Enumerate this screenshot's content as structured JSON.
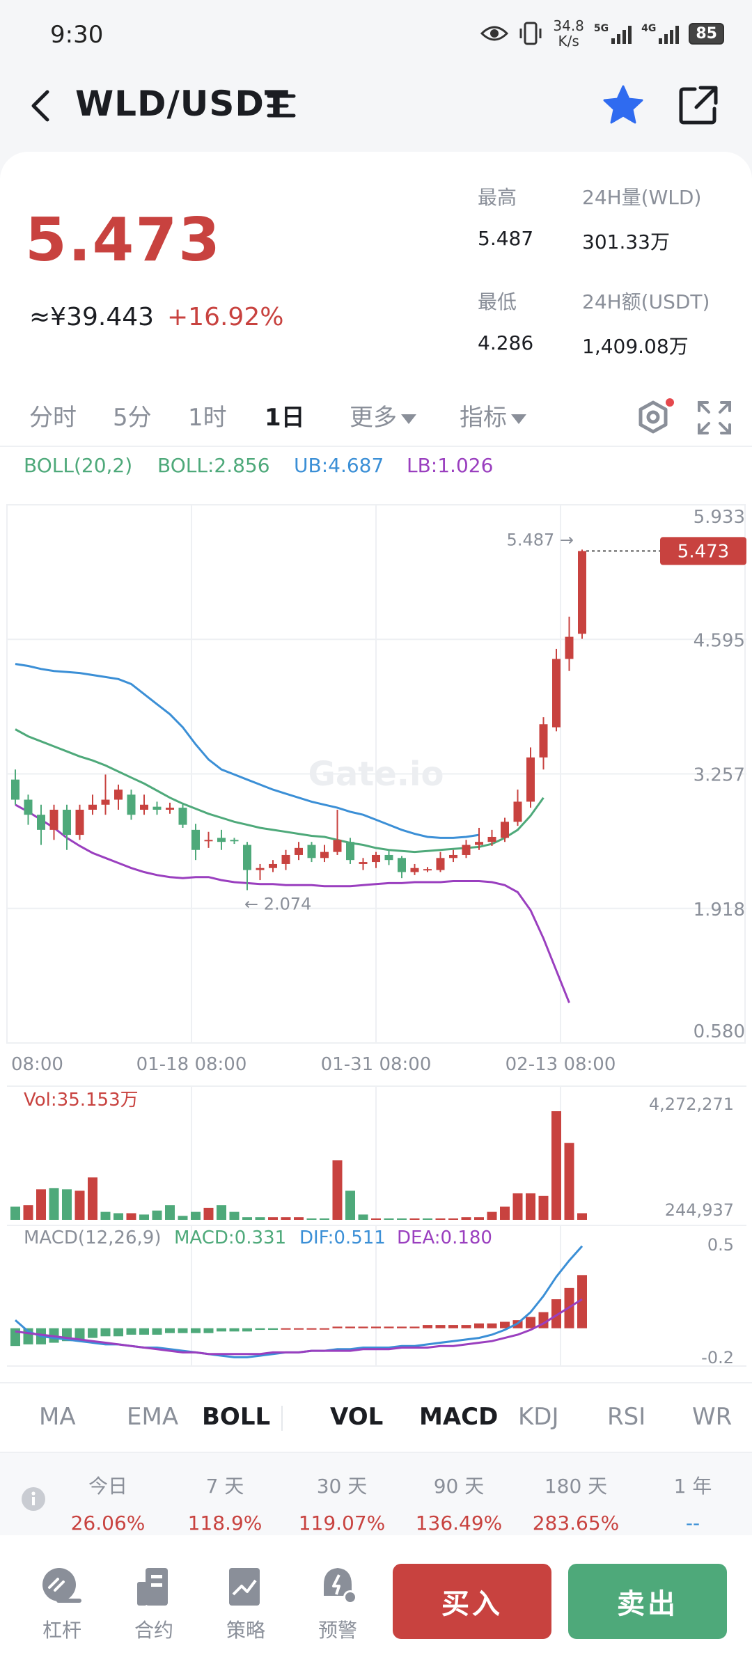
{
  "status_bar": {
    "time": "9:30",
    "net_speed_top": "34.8",
    "net_speed_bottom": "K/s",
    "signal_1": "5G",
    "signal_2": "4G",
    "battery": "85"
  },
  "header": {
    "pair": "WLD/USDT",
    "favorite": true
  },
  "ticker": {
    "last_price": "5.473",
    "cny_price": "≈¥39.443",
    "change_pct": "+16.92%",
    "high_label": "最高",
    "high_value": "5.487",
    "low_label": "最低",
    "low_value": "4.286",
    "vol_label": "24H量(WLD)",
    "vol_value": "301.33万",
    "amount_label": "24H额(USDT)",
    "amount_value": "1,409.08万"
  },
  "timeframes": {
    "items": [
      "分时",
      "5分",
      "1时",
      "1日"
    ],
    "active": "1日",
    "more": "更多",
    "indicators": "指标"
  },
  "boll_legend": {
    "name": "BOLL(20,2)",
    "boll": "BOLL:2.856",
    "ub": "UB:4.687",
    "lb": "LB:1.026"
  },
  "colors": {
    "up": "#c8423f",
    "down": "#4ea97a",
    "boll_mid": "#4ea97a",
    "boll_ub": "#3b8fd6",
    "boll_lb": "#9a3fbf",
    "buy": "#c8423f",
    "sell": "#4ea97a"
  },
  "chart_data": [
    {
      "type": "candlestick",
      "y_ticks": [
        "5.933",
        "4.595",
        "3.257",
        "1.918",
        "0.580"
      ],
      "ylim": [
        0.58,
        5.933
      ],
      "x_ticks": [
        "08:00",
        "01-18 08:00",
        "01-31 08:00",
        "02-13 08:00"
      ],
      "current_price_tag": "5.473",
      "max_marker": "5.487",
      "min_marker": "2.074",
      "watermark": "Gate.io",
      "candles": [
        [
          3.2,
          3.0,
          3.3,
          2.95
        ],
        [
          3.0,
          2.85,
          3.05,
          2.75
        ],
        [
          2.85,
          2.7,
          2.95,
          2.55
        ],
        [
          2.7,
          2.9,
          2.95,
          2.6
        ],
        [
          2.9,
          2.65,
          2.95,
          2.5
        ],
        [
          2.65,
          2.9,
          2.95,
          2.6
        ],
        [
          2.9,
          2.95,
          3.05,
          2.85
        ],
        [
          2.95,
          3.0,
          3.25,
          2.85
        ],
        [
          3.0,
          3.1,
          3.15,
          2.9
        ],
        [
          3.05,
          2.85,
          3.1,
          2.8
        ],
        [
          2.9,
          2.95,
          3.05,
          2.85
        ],
        [
          2.93,
          2.9,
          2.98,
          2.85
        ],
        [
          2.9,
          2.92,
          2.97,
          2.86
        ],
        [
          2.92,
          2.75,
          2.97,
          2.72
        ],
        [
          2.7,
          2.5,
          2.76,
          2.4
        ],
        [
          2.6,
          2.6,
          2.68,
          2.52
        ],
        [
          2.62,
          2.58,
          2.7,
          2.5
        ],
        [
          2.6,
          2.59,
          2.62,
          2.56
        ],
        [
          2.55,
          2.3,
          2.58,
          2.1
        ],
        [
          2.3,
          2.32,
          2.36,
          2.2
        ],
        [
          2.32,
          2.36,
          2.4,
          2.28
        ],
        [
          2.36,
          2.45,
          2.5,
          2.3
        ],
        [
          2.45,
          2.52,
          2.58,
          2.4
        ],
        [
          2.55,
          2.42,
          2.58,
          2.38
        ],
        [
          2.42,
          2.48,
          2.55,
          2.38
        ],
        [
          2.48,
          2.6,
          2.9,
          2.45
        ],
        [
          2.58,
          2.4,
          2.62,
          2.36
        ],
        [
          2.36,
          2.38,
          2.42,
          2.3
        ],
        [
          2.38,
          2.45,
          2.48,
          2.32
        ],
        [
          2.45,
          2.4,
          2.5,
          2.35
        ],
        [
          2.42,
          2.28,
          2.44,
          2.22
        ],
        [
          2.28,
          2.32,
          2.36,
          2.25
        ],
        [
          2.3,
          2.31,
          2.33,
          2.28
        ],
        [
          2.3,
          2.42,
          2.48,
          2.28
        ],
        [
          2.42,
          2.45,
          2.5,
          2.38
        ],
        [
          2.45,
          2.55,
          2.6,
          2.42
        ],
        [
          2.55,
          2.58,
          2.72,
          2.5
        ],
        [
          2.58,
          2.63,
          2.7,
          2.54
        ],
        [
          2.62,
          2.78,
          2.82,
          2.58
        ],
        [
          2.78,
          2.98,
          3.1,
          2.74
        ],
        [
          2.98,
          3.42,
          3.52,
          2.92
        ],
        [
          3.42,
          3.75,
          3.82,
          3.3
        ],
        [
          3.72,
          4.4,
          4.5,
          3.68
        ],
        [
          4.4,
          4.62,
          4.82,
          4.28
        ],
        [
          4.65,
          5.473,
          5.487,
          4.6
        ]
      ],
      "boll_upper": [
        4.35,
        4.33,
        4.3,
        4.28,
        4.27,
        4.26,
        4.24,
        4.22,
        4.2,
        4.15,
        4.05,
        3.95,
        3.85,
        3.72,
        3.55,
        3.4,
        3.3,
        3.25,
        3.2,
        3.15,
        3.1,
        3.06,
        3.02,
        2.98,
        2.95,
        2.92,
        2.88,
        2.85,
        2.8,
        2.75,
        2.7,
        2.66,
        2.63,
        2.62,
        2.62,
        2.63,
        2.65
      ],
      "boll_mid": [
        3.7,
        3.63,
        3.58,
        3.53,
        3.48,
        3.43,
        3.39,
        3.34,
        3.28,
        3.22,
        3.16,
        3.09,
        3.02,
        2.96,
        2.91,
        2.86,
        2.82,
        2.78,
        2.75,
        2.72,
        2.7,
        2.68,
        2.66,
        2.64,
        2.63,
        2.6,
        2.57,
        2.55,
        2.52,
        2.5,
        2.49,
        2.48,
        2.49,
        2.5,
        2.51,
        2.52,
        2.53,
        2.56,
        2.62,
        2.7,
        2.84,
        3.02
      ],
      "boll_lower": [
        2.95,
        2.88,
        2.8,
        2.72,
        2.62,
        2.54,
        2.47,
        2.42,
        2.37,
        2.32,
        2.28,
        2.25,
        2.23,
        2.22,
        2.23,
        2.23,
        2.2,
        2.18,
        2.17,
        2.16,
        2.16,
        2.15,
        2.15,
        2.15,
        2.14,
        2.14,
        2.14,
        2.15,
        2.16,
        2.17,
        2.17,
        2.18,
        2.18,
        2.18,
        2.19,
        2.19,
        2.19,
        2.18,
        2.15,
        2.08,
        1.9,
        1.62,
        1.3,
        0.98
      ]
    },
    {
      "type": "bar",
      "legend": "Vol:35.153万",
      "y_ticks": [
        "4,272,271",
        "244,937"
      ],
      "values": [
        0.1,
        0.11,
        0.23,
        0.24,
        0.23,
        0.22,
        0.32,
        0.06,
        0.05,
        0.05,
        0.04,
        0.07,
        0.11,
        0.03,
        0.06,
        0.09,
        0.11,
        0.06,
        0.02,
        0.02,
        0.02,
        0.02,
        0.02,
        0.01,
        0.01,
        0.45,
        0.22,
        0.04,
        0.01,
        0.01,
        0.01,
        0.0,
        0.0,
        0.01,
        0.01,
        0.02,
        0.02,
        0.06,
        0.1,
        0.2,
        0.2,
        0.18,
        0.82,
        0.58,
        0.05
      ],
      "up": [
        false,
        true,
        true,
        false,
        false,
        true,
        true,
        false,
        false,
        true,
        false,
        false,
        false,
        false,
        false,
        true,
        false,
        false,
        false,
        false,
        true,
        true,
        true,
        false,
        false,
        true,
        false,
        false,
        true,
        false,
        false,
        true,
        false,
        true,
        true,
        true,
        true,
        true,
        true,
        true,
        true,
        true,
        true,
        true,
        true
      ]
    },
    {
      "type": "bar+line",
      "legend_name": "MACD(12,26,9)",
      "legend_macd": "MACD:0.331",
      "legend_dif": "DIF:0.511",
      "legend_dea": "DEA:0.180",
      "y_ticks": [
        "0.5",
        "-0.2"
      ],
      "ylim": [
        -0.2,
        0.5
      ],
      "histogram": [
        -0.11,
        -0.1,
        -0.1,
        -0.09,
        -0.08,
        -0.07,
        -0.06,
        -0.05,
        -0.05,
        -0.04,
        -0.04,
        -0.04,
        -0.03,
        -0.03,
        -0.03,
        -0.03,
        -0.02,
        -0.02,
        -0.02,
        -0.01,
        -0.01,
        0.0,
        0.0,
        0.0,
        0.0,
        0.01,
        0.01,
        0.01,
        0.01,
        0.01,
        0.01,
        0.01,
        0.02,
        0.02,
        0.02,
        0.02,
        0.03,
        0.03,
        0.04,
        0.05,
        0.07,
        0.1,
        0.18,
        0.25,
        0.33
      ],
      "dif": [
        0.05,
        -0.02,
        -0.05,
        -0.06,
        -0.07,
        -0.08,
        -0.09,
        -0.1,
        -0.1,
        -0.11,
        -0.12,
        -0.12,
        -0.13,
        -0.14,
        -0.15,
        -0.16,
        -0.17,
        -0.18,
        -0.18,
        -0.17,
        -0.16,
        -0.15,
        -0.15,
        -0.14,
        -0.14,
        -0.13,
        -0.13,
        -0.12,
        -0.12,
        -0.12,
        -0.11,
        -0.11,
        -0.1,
        -0.09,
        -0.08,
        -0.07,
        -0.06,
        -0.04,
        -0.01,
        0.03,
        0.1,
        0.2,
        0.32,
        0.42,
        0.51
      ],
      "dea": [
        -0.02,
        -0.03,
        -0.04,
        -0.05,
        -0.06,
        -0.07,
        -0.08,
        -0.09,
        -0.1,
        -0.11,
        -0.12,
        -0.13,
        -0.14,
        -0.15,
        -0.15,
        -0.16,
        -0.16,
        -0.16,
        -0.16,
        -0.16,
        -0.15,
        -0.15,
        -0.15,
        -0.14,
        -0.14,
        -0.14,
        -0.14,
        -0.13,
        -0.13,
        -0.13,
        -0.12,
        -0.12,
        -0.12,
        -0.11,
        -0.11,
        -0.1,
        -0.09,
        -0.08,
        -0.06,
        -0.04,
        -0.01,
        0.03,
        0.08,
        0.13,
        0.18
      ]
    }
  ],
  "indicator_tabs": {
    "main": [
      "MA",
      "EMA",
      "BOLL"
    ],
    "sub": [
      "VOL",
      "MACD",
      "KDJ",
      "RSI",
      "WR"
    ],
    "main_active": "BOLL",
    "sub_active": [
      "VOL",
      "MACD"
    ]
  },
  "performance": [
    {
      "label": "今日",
      "value": "26.06%"
    },
    {
      "label": "7 天",
      "value": "118.9%"
    },
    {
      "label": "30 天",
      "value": "119.07%"
    },
    {
      "label": "90 天",
      "value": "136.49%"
    },
    {
      "label": "180 天",
      "value": "283.65%"
    },
    {
      "label": "1 年",
      "value": "--"
    }
  ],
  "bottom_nav": {
    "leverage": "杠杆",
    "contract": "合约",
    "strategy": "策略",
    "alert": "预警",
    "buy": "买入",
    "sell": "卖出"
  }
}
